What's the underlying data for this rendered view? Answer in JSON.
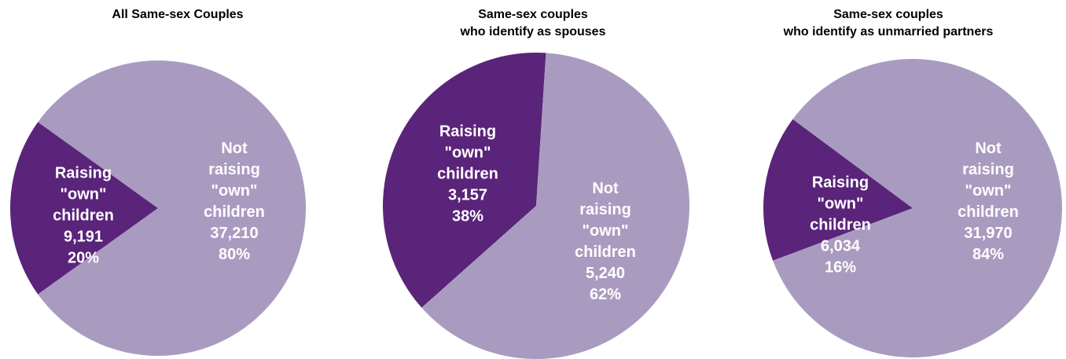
{
  "colors": {
    "raising": "#5A247A",
    "not_raising": "#A99BC0"
  },
  "chart_data": [
    {
      "type": "pie",
      "title_lines": [
        "All Same-sex Couples"
      ],
      "series": [
        {
          "label_lines": [
            "Raising",
            "\"own\"",
            "children"
          ],
          "value": 9191,
          "value_label": "9,191",
          "percent_label": "20%"
        },
        {
          "label_lines": [
            "Not",
            "raising",
            "\"own\"",
            "children"
          ],
          "value": 37210,
          "value_label": "37,210",
          "percent_label": "80%"
        }
      ]
    },
    {
      "type": "pie",
      "title_lines": [
        "Same-sex couples",
        "who identify as spouses"
      ],
      "series": [
        {
          "label_lines": [
            "Raising",
            "\"own\"",
            "children"
          ],
          "value": 3157,
          "value_label": "3,157",
          "percent_label": "38%"
        },
        {
          "label_lines": [
            "Not",
            "raising",
            "\"own\"",
            "children"
          ],
          "value": 5240,
          "value_label": "5,240",
          "percent_label": "62%"
        }
      ]
    },
    {
      "type": "pie",
      "title_lines": [
        "Same-sex couples",
        "who identify as unmarried partners"
      ],
      "series": [
        {
          "label_lines": [
            "Raising",
            "\"own\"",
            "children"
          ],
          "value": 6034,
          "value_label": "6,034",
          "percent_label": "16%"
        },
        {
          "label_lines": [
            "Not",
            "raising",
            "\"own\"",
            "children"
          ],
          "value": 31970,
          "value_label": "31,970",
          "percent_label": "84%"
        }
      ]
    }
  ]
}
